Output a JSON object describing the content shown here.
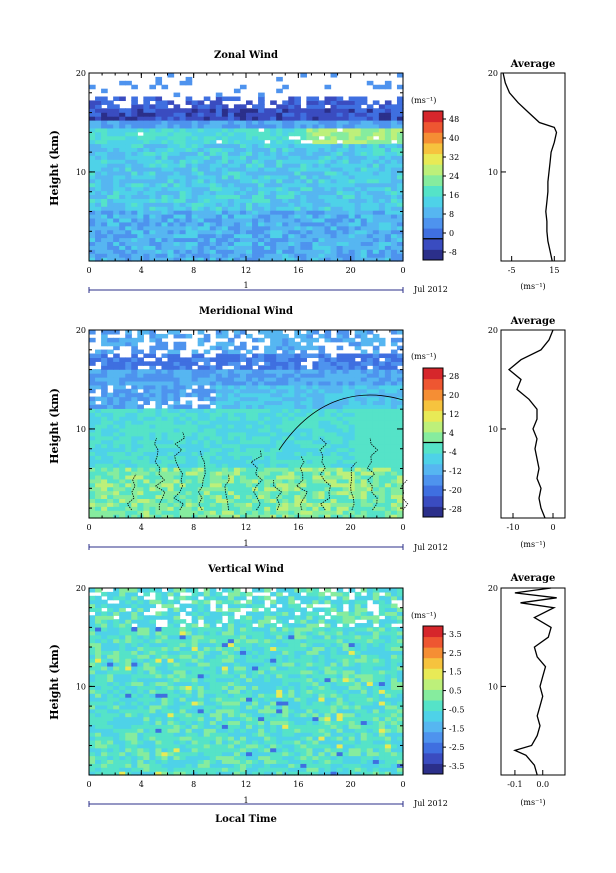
{
  "figure": {
    "x_axis_label": "Local Time",
    "month_label": "Jul 2012",
    "day_marker": "1",
    "unit_label": "(ms⁻¹)",
    "colormap": [
      "#2b2f8a",
      "#3a4cc0",
      "#3f6fe0",
      "#4e93ee",
      "#56b6f1",
      "#4ed2e8",
      "#55e3c8",
      "#86ec9e",
      "#bdf07a",
      "#e8ea56",
      "#f6c33e",
      "#f58e34",
      "#ee5631",
      "#d6262b"
    ]
  },
  "panels": [
    {
      "title": "Zonal Wind",
      "ylabel": "Height (km)",
      "colorbar_labels": [
        "48",
        "40",
        "32",
        "24",
        "16",
        "8",
        "0",
        "-8"
      ],
      "colorbar_zero_line": "0",
      "profile_title": "Average",
      "profile_unit": "(ms⁻¹)",
      "profile_xticks": [
        "-5",
        "15"
      ]
    },
    {
      "title": "Meridional Wind",
      "ylabel": "Height (km)",
      "colorbar_labels": [
        "28",
        "20",
        "12",
        "4",
        "-4",
        "-12",
        "-20",
        "-28"
      ],
      "colorbar_zero_line": "0",
      "profile_title": "Average",
      "profile_unit": "(ms⁻¹)",
      "profile_xticks": [
        "-10",
        "0"
      ]
    },
    {
      "title": "Vertical Wind",
      "ylabel": "Height (km)",
      "colorbar_labels": [
        "3.5",
        "2.5",
        "1.5",
        "0.5",
        "-0.5",
        "-1.5",
        "-2.5",
        "-3.5"
      ],
      "colorbar_zero_line": "",
      "profile_title": "Average",
      "profile_unit": "(ms⁻¹)",
      "profile_xticks": [
        "-0.1",
        "0.0"
      ]
    }
  ],
  "chart_data": [
    {
      "type": "heatmap",
      "title": "Zonal Wind",
      "ylabel": "Height (km)",
      "x_ticks": [
        "0",
        "4",
        "8",
        "12",
        "16",
        "20",
        "0"
      ],
      "y_ticks": [
        "10",
        "20"
      ],
      "ylim": [
        1,
        20
      ],
      "xlim": [
        0,
        24
      ],
      "colorbar": {
        "min": -8,
        "max": 52,
        "ticks": [
          48,
          40,
          32,
          24,
          16,
          8,
          0,
          -8
        ]
      },
      "values_note_rows": [
        {
          "height_km": 2,
          "ms": 10
        },
        {
          "height_km": 6,
          "ms": 13
        },
        {
          "height_km": 10,
          "ms": 16
        },
        {
          "height_km": 13,
          "ms": 18
        },
        {
          "height_km": 15,
          "ms": 4
        },
        {
          "height_km": 17,
          "ms": -4
        }
      ],
      "profile": {
        "title": "Average",
        "xlim": [
          -10,
          20
        ],
        "xticks": [
          -5,
          15
        ],
        "y": [
          1,
          2,
          3,
          4,
          5,
          6,
          7,
          8,
          9,
          10,
          11,
          12,
          13,
          14,
          14.5,
          15,
          16,
          17,
          18,
          19,
          20
        ],
        "x": [
          14,
          13,
          12,
          11.5,
          11.5,
          11,
          11.5,
          12,
          12,
          12.5,
          13,
          13.5,
          15,
          16,
          15,
          8,
          3,
          -2,
          -6,
          -8,
          -9
        ]
      }
    },
    {
      "type": "heatmap",
      "title": "Meridional Wind",
      "ylabel": "Height (km)",
      "x_ticks": [
        "0",
        "4",
        "8",
        "12",
        "16",
        "20",
        "0"
      ],
      "y_ticks": [
        "10",
        "20"
      ],
      "ylim": [
        1,
        20
      ],
      "xlim": [
        0,
        24
      ],
      "colorbar": {
        "min": -32,
        "max": 32,
        "ticks": [
          28,
          20,
          12,
          4,
          -4,
          -12,
          -20,
          -28
        ]
      },
      "profile": {
        "title": "Average",
        "xlim": [
          -13,
          3
        ],
        "xticks": [
          -10,
          0
        ],
        "y": [
          1,
          2,
          3,
          4,
          5,
          6,
          7,
          8,
          9,
          10,
          11,
          12,
          13,
          14,
          15,
          16,
          17,
          18,
          19,
          20
        ],
        "x": [
          -2,
          -3,
          -3.5,
          -3,
          -4,
          -3.5,
          -4,
          -4.5,
          -4,
          -5,
          -4,
          -4,
          -6,
          -9,
          -8,
          -11,
          -8,
          -3,
          -1,
          0
        ]
      }
    },
    {
      "type": "heatmap",
      "title": "Vertical Wind",
      "ylabel": "Height (km)",
      "x_ticks": [
        "0",
        "4",
        "8",
        "12",
        "16",
        "20",
        "0"
      ],
      "y_ticks": [
        "10",
        "20"
      ],
      "ylim": [
        1,
        20
      ],
      "xlim": [
        0,
        24
      ],
      "colorbar": {
        "min": -4,
        "max": 4,
        "ticks": [
          3.5,
          2.5,
          1.5,
          0.5,
          -0.5,
          -1.5,
          -2.5,
          -3.5
        ]
      },
      "profile": {
        "title": "Average",
        "xlim": [
          -0.15,
          0.08
        ],
        "xticks": [
          -0.1,
          0.0
        ],
        "y": [
          1,
          2,
          3,
          3.5,
          4,
          5,
          6,
          7,
          8,
          9,
          10,
          11,
          12,
          13,
          14,
          15,
          16,
          17,
          18,
          18.5,
          19,
          19.5,
          20
        ],
        "x": [
          -0.02,
          -0.03,
          -0.06,
          -0.1,
          -0.04,
          -0.02,
          -0.01,
          -0.02,
          -0.01,
          0.0,
          -0.01,
          0.0,
          0.01,
          -0.02,
          -0.03,
          0.02,
          0.03,
          -0.03,
          0.04,
          -0.08,
          0.05,
          -0.1,
          0.03
        ]
      }
    }
  ]
}
